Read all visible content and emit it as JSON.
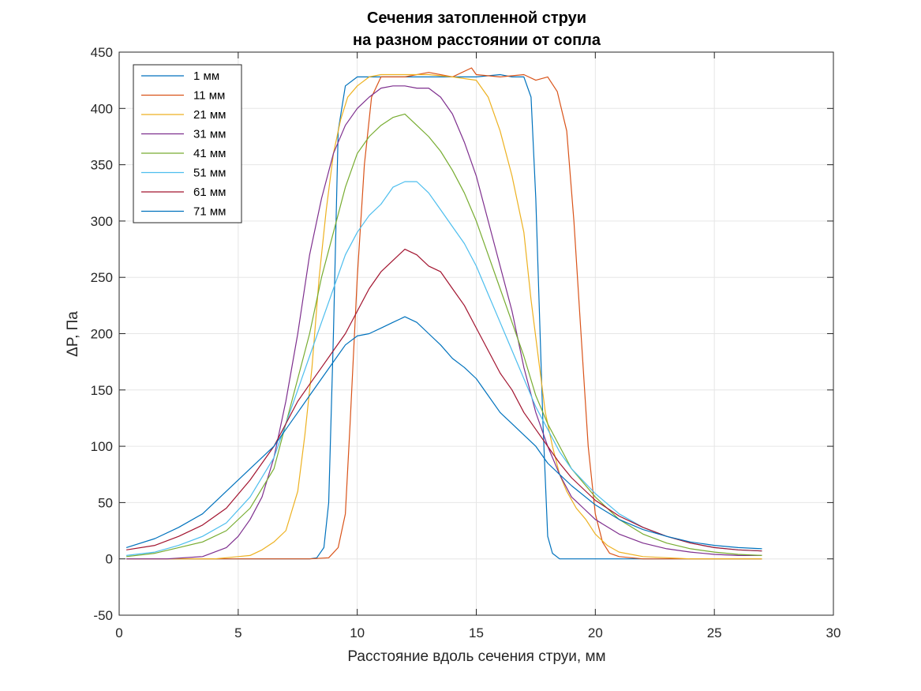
{
  "chart_data": {
    "type": "line",
    "title": "Сечения затопленной струи",
    "subtitle": "на разном расстоянии от сопла",
    "xlabel": "Расстояние вдоль сечения струи, мм",
    "ylabel": "ΔP, Па",
    "xlim": [
      0,
      30
    ],
    "ylim": [
      -50,
      450
    ],
    "xticks": [
      0,
      5,
      10,
      15,
      20,
      25,
      30
    ],
    "yticks": [
      -50,
      0,
      50,
      100,
      150,
      200,
      250,
      300,
      350,
      400,
      450
    ],
    "grid": true,
    "legend_position": "top-left",
    "series": [
      {
        "name": "1 мм",
        "color": "#0072BD",
        "x": [
          0.3,
          1,
          2,
          3,
          4,
          5,
          6,
          7,
          7.5,
          8,
          8.3,
          8.6,
          8.8,
          9.0,
          9.2,
          9.5,
          10,
          11,
          12,
          13,
          14,
          15,
          16,
          16.5,
          17,
          17.3,
          17.5,
          17.8,
          18.0,
          18.2,
          18.5,
          19,
          20,
          22,
          24,
          27
        ],
        "y": [
          0,
          0,
          0,
          0,
          0,
          0,
          0,
          0,
          0,
          0,
          1,
          10,
          50,
          200,
          380,
          420,
          428,
          428,
          428,
          428,
          428,
          428,
          430,
          428,
          428,
          410,
          320,
          120,
          20,
          5,
          0,
          0,
          0,
          0,
          0,
          0
        ]
      },
      {
        "name": "11 мм",
        "color": "#D95319",
        "x": [
          0.3,
          2,
          4,
          6,
          8,
          8.8,
          9.2,
          9.5,
          9.7,
          10.0,
          10.3,
          10.6,
          11,
          12,
          13,
          14,
          14.8,
          15,
          16,
          17,
          17.5,
          18,
          18.4,
          18.8,
          19.1,
          19.4,
          19.7,
          20.0,
          20.3,
          20.6,
          21,
          22,
          24,
          27
        ],
        "y": [
          0,
          0,
          0,
          0,
          0,
          1,
          10,
          40,
          120,
          250,
          350,
          410,
          428,
          428,
          432,
          428,
          436,
          430,
          428,
          430,
          425,
          428,
          415,
          380,
          300,
          200,
          100,
          40,
          15,
          5,
          2,
          0,
          0,
          0
        ]
      },
      {
        "name": "21 мм",
        "color": "#EDB120",
        "x": [
          0.3,
          2,
          4,
          5,
          5.5,
          6,
          6.5,
          7,
          7.5,
          7.8,
          8.1,
          8.4,
          8.7,
          9.0,
          9.3,
          9.6,
          10,
          10.5,
          11,
          12,
          13,
          14,
          15,
          15.5,
          16,
          16.5,
          17,
          17.3,
          17.6,
          17.9,
          18.2,
          18.5,
          18.8,
          19.2,
          19.6,
          20,
          20.5,
          21,
          22,
          24,
          27
        ],
        "y": [
          0,
          0,
          0,
          2,
          3,
          8,
          15,
          25,
          60,
          110,
          170,
          250,
          310,
          360,
          390,
          410,
          420,
          428,
          430,
          430,
          430,
          428,
          425,
          410,
          380,
          340,
          290,
          230,
          180,
          130,
          100,
          75,
          60,
          45,
          35,
          22,
          12,
          6,
          2,
          0,
          0
        ]
      },
      {
        "name": "31 мм",
        "color": "#7E2F8E",
        "x": [
          0.3,
          2,
          3.5,
          4.5,
          5,
          5.5,
          6,
          6.5,
          7,
          7.5,
          8,
          8.5,
          9,
          9.5,
          10,
          10.5,
          11,
          11.5,
          12,
          12.5,
          13,
          13.5,
          14,
          14.5,
          15,
          15.5,
          16,
          16.5,
          17,
          17.5,
          18,
          18.5,
          19,
          19.5,
          20,
          21,
          22,
          23,
          24,
          25,
          26,
          27
        ],
        "y": [
          0,
          0,
          2,
          10,
          20,
          35,
          55,
          90,
          140,
          200,
          270,
          320,
          360,
          385,
          400,
          410,
          418,
          420,
          420,
          418,
          418,
          410,
          395,
          370,
          340,
          300,
          260,
          220,
          170,
          130,
          100,
          75,
          55,
          45,
          35,
          22,
          14,
          9,
          6,
          4,
          3,
          3
        ]
      },
      {
        "name": "41 мм",
        "color": "#77AC30",
        "x": [
          0.3,
          1.5,
          2.5,
          3.5,
          4.5,
          5.5,
          6.5,
          7,
          7.5,
          8,
          8.5,
          9,
          9.5,
          10,
          10.5,
          11,
          11.5,
          12,
          12.5,
          13,
          13.5,
          14,
          14.5,
          15,
          15.5,
          16,
          16.5,
          17,
          17.5,
          18,
          18.5,
          19,
          20,
          21,
          22,
          23,
          24,
          25,
          26,
          27
        ],
        "y": [
          2,
          5,
          10,
          15,
          25,
          45,
          80,
          120,
          160,
          200,
          250,
          290,
          330,
          360,
          375,
          385,
          392,
          395,
          385,
          375,
          362,
          345,
          325,
          300,
          270,
          240,
          210,
          180,
          145,
          120,
          100,
          80,
          55,
          35,
          22,
          14,
          9,
          6,
          4,
          3
        ]
      },
      {
        "name": "51 мм",
        "color": "#4DBEEE",
        "x": [
          0.3,
          1.5,
          2.5,
          3.5,
          4.5,
          5.5,
          6.5,
          7,
          7.5,
          8,
          8.5,
          9,
          9.5,
          10,
          10.5,
          11,
          11.5,
          12,
          12.5,
          13,
          13.5,
          14,
          14.5,
          15,
          15.5,
          16,
          16.5,
          17,
          17.5,
          18,
          18.5,
          19,
          20,
          21,
          22,
          23,
          24,
          25,
          26,
          27
        ],
        "y": [
          3,
          6,
          12,
          20,
          32,
          55,
          90,
          120,
          150,
          180,
          210,
          240,
          270,
          290,
          305,
          315,
          330,
          335,
          335,
          325,
          310,
          295,
          280,
          260,
          235,
          210,
          185,
          160,
          135,
          115,
          95,
          80,
          58,
          40,
          28,
          20,
          14,
          10,
          8,
          7
        ]
      },
      {
        "name": "61 мм",
        "color": "#A2142F",
        "x": [
          0.3,
          1.5,
          2.5,
          3.5,
          4.5,
          5.5,
          6.5,
          7,
          7.5,
          8,
          8.5,
          9,
          9.5,
          10,
          10.5,
          11,
          11.5,
          12,
          12.5,
          13,
          13.5,
          14,
          14.5,
          15,
          15.5,
          16,
          16.5,
          17,
          17.5,
          18,
          18.5,
          19,
          20,
          21,
          22,
          23,
          24,
          25,
          26,
          27
        ],
        "y": [
          8,
          12,
          20,
          30,
          45,
          70,
          100,
          120,
          140,
          155,
          170,
          185,
          200,
          220,
          240,
          255,
          265,
          275,
          270,
          260,
          255,
          240,
          225,
          205,
          185,
          165,
          150,
          130,
          115,
          100,
          85,
          72,
          52,
          38,
          28,
          20,
          14,
          10,
          8,
          7
        ]
      },
      {
        "name": "71 мм",
        "color": "#0072BD",
        "x": [
          0.3,
          1.5,
          2.5,
          3.5,
          4.5,
          5.5,
          6.5,
          7,
          7.5,
          8,
          8.5,
          9,
          9.5,
          10,
          10.5,
          11,
          11.5,
          12,
          12.5,
          13,
          13.5,
          14,
          14.5,
          15,
          15.5,
          16,
          16.5,
          17,
          17.5,
          18,
          18.5,
          19,
          20,
          21,
          22,
          23,
          24,
          25,
          26,
          27
        ],
        "y": [
          10,
          18,
          28,
          40,
          60,
          80,
          100,
          115,
          130,
          145,
          160,
          175,
          190,
          198,
          200,
          205,
          210,
          215,
          210,
          200,
          190,
          178,
          170,
          160,
          145,
          130,
          120,
          110,
          100,
          85,
          75,
          65,
          48,
          35,
          26,
          20,
          15,
          12,
          10,
          9
        ]
      }
    ]
  }
}
